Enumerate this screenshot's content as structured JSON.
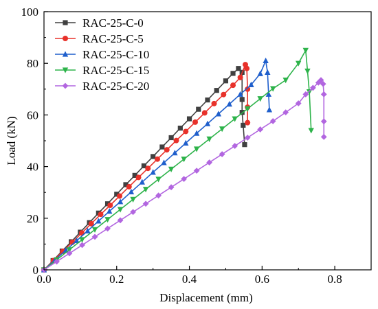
{
  "chart_data": {
    "type": "line",
    "xlabel": "Displacement (mm)",
    "ylabel": "Load (kN)",
    "xlim": [
      0,
      0.9
    ],
    "ylim": [
      0,
      100
    ],
    "xticks": [
      0.0,
      0.2,
      0.4,
      0.6,
      0.8
    ],
    "yticks": [
      0,
      20,
      40,
      60,
      80,
      100
    ],
    "xtick_labels": [
      "0.0",
      "0.2",
      "0.4",
      "0.6",
      "0.8"
    ],
    "ytick_labels": [
      "0",
      "20",
      "40",
      "60",
      "80",
      "100"
    ],
    "grid": false,
    "legend_position": "top-left",
    "series": [
      {
        "name": "RAC-25-C-0",
        "color": "#404040",
        "marker": "square",
        "x": [
          0,
          0.025,
          0.05,
          0.075,
          0.1,
          0.125,
          0.15,
          0.175,
          0.2,
          0.225,
          0.25,
          0.275,
          0.3,
          0.325,
          0.35,
          0.375,
          0.4,
          0.425,
          0.45,
          0.475,
          0.5,
          0.52,
          0.535,
          0.545,
          0.545,
          0.545,
          0.548,
          0.552
        ],
        "y": [
          0,
          3.6,
          7.3,
          10.9,
          14.6,
          18.3,
          22.0,
          25.6,
          29.3,
          33.0,
          36.6,
          40.3,
          43.9,
          47.6,
          51.2,
          54.9,
          58.5,
          62.2,
          65.8,
          69.5,
          73.2,
          76.1,
          78.0,
          76.5,
          66.0,
          61.0,
          56.0,
          48.5
        ]
      },
      {
        "name": "RAC-25-C-5",
        "color": "#e8312a",
        "marker": "circle",
        "x": [
          0,
          0.026,
          0.052,
          0.078,
          0.104,
          0.13,
          0.156,
          0.182,
          0.208,
          0.234,
          0.26,
          0.286,
          0.312,
          0.338,
          0.364,
          0.39,
          0.416,
          0.442,
          0.468,
          0.494,
          0.52,
          0.54,
          0.554,
          0.558,
          0.56,
          0.56,
          0.56
        ],
        "y": [
          0,
          3.6,
          7.2,
          10.7,
          14.3,
          17.9,
          21.5,
          25.0,
          28.6,
          32.2,
          35.8,
          39.3,
          42.9,
          46.5,
          50.1,
          53.6,
          57.2,
          60.8,
          64.4,
          67.9,
          71.5,
          74.5,
          79.5,
          78.0,
          70.0,
          63.0,
          57.0
        ]
      },
      {
        "name": "RAC-25-C-10",
        "color": "#1f5fcc",
        "marker": "triangle-up",
        "x": [
          0,
          0.03,
          0.06,
          0.09,
          0.12,
          0.15,
          0.18,
          0.21,
          0.24,
          0.27,
          0.3,
          0.33,
          0.36,
          0.39,
          0.42,
          0.45,
          0.48,
          0.51,
          0.54,
          0.57,
          0.595,
          0.61,
          0.615,
          0.618,
          0.62
        ],
        "y": [
          0,
          3.8,
          7.6,
          11.3,
          15.1,
          18.9,
          22.7,
          26.4,
          30.2,
          34.0,
          37.8,
          41.5,
          45.3,
          49.1,
          52.9,
          56.6,
          60.4,
          64.2,
          68.0,
          71.7,
          76.0,
          81.0,
          76.5,
          68.0,
          62.0
        ]
      },
      {
        "name": "RAC-25-C-15",
        "color": "#2db34a",
        "marker": "triangle-down",
        "x": [
          0,
          0.035,
          0.07,
          0.105,
          0.14,
          0.175,
          0.21,
          0.245,
          0.28,
          0.315,
          0.35,
          0.385,
          0.42,
          0.455,
          0.49,
          0.525,
          0.56,
          0.595,
          0.63,
          0.665,
          0.7,
          0.72,
          0.725,
          0.73,
          0.735
        ],
        "y": [
          0,
          3.9,
          7.8,
          11.7,
          15.6,
          19.5,
          23.4,
          27.3,
          31.2,
          35.1,
          39.0,
          42.9,
          46.8,
          50.7,
          54.6,
          58.5,
          62.4,
          66.3,
          70.2,
          73.5,
          80.0,
          85.0,
          77.0,
          69.0,
          54.0
        ]
      },
      {
        "name": "RAC-25-C-20",
        "color": "#b266e0",
        "marker": "diamond",
        "x": [
          0,
          0.035,
          0.07,
          0.105,
          0.14,
          0.175,
          0.21,
          0.245,
          0.28,
          0.315,
          0.35,
          0.385,
          0.42,
          0.455,
          0.49,
          0.525,
          0.56,
          0.595,
          0.63,
          0.665,
          0.7,
          0.72,
          0.74,
          0.755,
          0.762,
          0.768,
          0.77,
          0.77,
          0.77
        ],
        "y": [
          0,
          3.2,
          6.4,
          9.6,
          12.8,
          16.0,
          19.2,
          22.4,
          25.6,
          28.8,
          32.0,
          35.2,
          38.4,
          41.6,
          44.8,
          48.0,
          51.2,
          54.4,
          57.6,
          61.0,
          64.5,
          68.0,
          70.5,
          72.5,
          73.5,
          72.0,
          68.0,
          57.5,
          51.5
        ]
      }
    ]
  }
}
